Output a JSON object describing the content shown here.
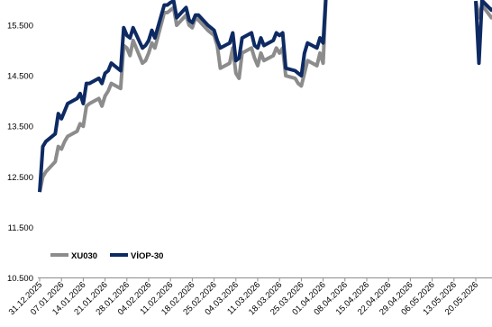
{
  "chart_data": {
    "type": "line",
    "title": "",
    "xlabel": "",
    "ylabel": "",
    "ylim": [
      10500,
      16000
    ],
    "y_ticks": [
      "10.500",
      "11.500",
      "12.500",
      "13.500",
      "14.500",
      "15.500"
    ],
    "y_tick_values": [
      10500,
      11500,
      12500,
      13500,
      14500,
      15500
    ],
    "x_ticks": [
      "31.12.2025",
      "07.01.2026",
      "14.01.2026",
      "21.01.2026",
      "28.01.2026",
      "04.02.2026",
      "11.02.2026",
      "18.02.2026",
      "25.02.2026",
      "04.03.2026",
      "11.03.2026",
      "18.03.2026",
      "25.03.2026",
      "01.04.2026",
      "08.04.2026",
      "15.04.2026",
      "22.04.2026",
      "29.04.2026",
      "06.05.2026",
      "13.05.2026",
      "20.05.2026"
    ],
    "grid": false,
    "legend_position": "bottom-left",
    "series": [
      {
        "name": "XU030",
        "color": "#8c8c8c",
        "points": [
          [
            "31.12.2025",
            12200
          ],
          [
            "01.01.2026",
            12500
          ],
          [
            "02.01.2026",
            12600
          ],
          [
            "05.01.2026",
            12800
          ],
          [
            "06.01.2026",
            13100
          ],
          [
            "07.01.2026",
            13050
          ],
          [
            "08.01.2026",
            13200
          ],
          [
            "09.01.2026",
            13300
          ],
          [
            "12.01.2026",
            13400
          ],
          [
            "13.01.2026",
            13550
          ],
          [
            "14.01.2026",
            13500
          ],
          [
            "15.01.2026",
            13900
          ],
          [
            "16.01.2026",
            13950
          ],
          [
            "19.01.2026",
            14050
          ],
          [
            "20.01.2026",
            13900
          ],
          [
            "21.01.2026",
            14100
          ],
          [
            "22.01.2026",
            14200
          ],
          [
            "23.01.2026",
            14350
          ],
          [
            "26.01.2026",
            14250
          ],
          [
            "27.01.2026",
            15100
          ],
          [
            "28.01.2026",
            15050
          ],
          [
            "29.01.2026",
            14900
          ],
          [
            "30.01.2026",
            15200
          ],
          [
            "02.02.2026",
            14750
          ],
          [
            "03.02.2026",
            14800
          ],
          [
            "04.02.2026",
            14950
          ],
          [
            "05.02.2026",
            15150
          ],
          [
            "06.02.2026",
            15050
          ],
          [
            "09.02.2026",
            15750
          ],
          [
            "10.02.2026",
            15750
          ],
          [
            "11.02.2026",
            15800
          ],
          [
            "12.02.2026",
            15850
          ],
          [
            "13.02.2026",
            15500
          ],
          [
            "16.02.2026",
            15700
          ],
          [
            "17.02.2026",
            15500
          ],
          [
            "18.02.2026",
            15450
          ],
          [
            "19.02.2026",
            15650
          ],
          [
            "20.02.2026",
            15600
          ],
          [
            "23.02.2026",
            15400
          ],
          [
            "24.02.2026",
            15350
          ],
          [
            "25.02.2026",
            15300
          ],
          [
            "26.02.2026",
            15100
          ],
          [
            "27.02.2026",
            14650
          ],
          [
            "02.03.2026",
            14750
          ],
          [
            "03.03.2026",
            15050
          ],
          [
            "04.03.2026",
            14550
          ],
          [
            "05.03.2026",
            14450
          ],
          [
            "06.03.2026",
            14950
          ],
          [
            "09.03.2026",
            15050
          ],
          [
            "10.03.2026",
            14850
          ],
          [
            "11.03.2026",
            14700
          ],
          [
            "12.03.2026",
            14950
          ],
          [
            "13.03.2026",
            14800
          ],
          [
            "16.03.2026",
            14900
          ],
          [
            "17.03.2026",
            15050
          ],
          [
            "18.03.2026",
            14950
          ],
          [
            "19.03.2026",
            15050
          ],
          [
            "20.03.2026",
            14500
          ],
          [
            "23.03.2026",
            14450
          ],
          [
            "24.03.2026",
            14350
          ],
          [
            "25.03.2026",
            14300
          ],
          [
            "26.03.2026",
            14550
          ],
          [
            "27.03.2026",
            14800
          ],
          [
            "30.03.2026",
            14700
          ],
          [
            "31.03.2026",
            14950
          ],
          [
            "01.04.2026",
            14750
          ],
          [
            "02.04.2026",
            16200
          ]
        ]
      },
      {
        "name": "VİOP-30",
        "color": "#0e2a63",
        "points": [
          [
            "31.12.2025",
            12200
          ],
          [
            "01.01.2026",
            13100
          ],
          [
            "02.01.2026",
            13200
          ],
          [
            "05.01.2026",
            13350
          ],
          [
            "06.01.2026",
            13750
          ],
          [
            "07.01.2026",
            13650
          ],
          [
            "08.01.2026",
            13800
          ],
          [
            "09.01.2026",
            13950
          ],
          [
            "12.01.2026",
            14050
          ],
          [
            "13.01.2026",
            14150
          ],
          [
            "14.01.2026",
            13950
          ],
          [
            "15.01.2026",
            14350
          ],
          [
            "16.01.2026",
            14350
          ],
          [
            "19.01.2026",
            14450
          ],
          [
            "20.01.2026",
            14350
          ],
          [
            "21.01.2026",
            14550
          ],
          [
            "22.01.2026",
            14600
          ],
          [
            "23.01.2026",
            14750
          ],
          [
            "26.01.2026",
            14600
          ],
          [
            "27.01.2026",
            15450
          ],
          [
            "28.01.2026",
            15300
          ],
          [
            "29.01.2026",
            15250
          ],
          [
            "30.01.2026",
            15450
          ],
          [
            "02.02.2026",
            15050
          ],
          [
            "03.02.2026",
            15100
          ],
          [
            "04.02.2026",
            15200
          ],
          [
            "05.02.2026",
            15400
          ],
          [
            "06.02.2026",
            15250
          ],
          [
            "09.02.2026",
            15900
          ],
          [
            "10.02.2026",
            15900
          ],
          [
            "11.02.2026",
            15950
          ],
          [
            "12.02.2026",
            15980
          ],
          [
            "13.02.2026",
            15650
          ],
          [
            "16.02.2026",
            15850
          ],
          [
            "17.02.2026",
            15600
          ],
          [
            "18.02.2026",
            15550
          ],
          [
            "19.02.2026",
            15700
          ],
          [
            "20.02.2026",
            15700
          ],
          [
            "23.02.2026",
            15500
          ],
          [
            "24.02.2026",
            15450
          ],
          [
            "25.02.2026",
            15400
          ],
          [
            "26.02.2026",
            15200
          ],
          [
            "27.02.2026",
            15050
          ],
          [
            "02.03.2026",
            15150
          ],
          [
            "03.03.2026",
            15350
          ],
          [
            "04.03.2026",
            14800
          ],
          [
            "05.03.2026",
            14850
          ],
          [
            "06.03.2026",
            15250
          ],
          [
            "09.03.2026",
            15350
          ],
          [
            "10.03.2026",
            15100
          ],
          [
            "11.03.2026",
            15050
          ],
          [
            "12.03.2026",
            15250
          ],
          [
            "13.03.2026",
            15100
          ],
          [
            "16.03.2026",
            15200
          ],
          [
            "17.03.2026",
            15350
          ],
          [
            "18.03.2026",
            15300
          ],
          [
            "19.03.2026",
            15350
          ],
          [
            "20.03.2026",
            14650
          ],
          [
            "23.03.2026",
            14600
          ],
          [
            "24.03.2026",
            14550
          ],
          [
            "25.03.2026",
            14500
          ],
          [
            "26.03.2026",
            14950
          ],
          [
            "27.03.2026",
            15150
          ],
          [
            "30.03.2026",
            15050
          ],
          [
            "31.03.2026",
            15250
          ],
          [
            "01.04.2026",
            15150
          ],
          [
            "02.04.2026",
            16200
          ]
        ]
      }
    ],
    "far_right_segments": [
      {
        "name": "XU030",
        "color": "#8c8c8c",
        "points": [
          [
            "20.05.2026",
            15980
          ],
          [
            "21.05.2026",
            15650
          ],
          [
            "22.05.2026",
            15900
          ],
          [
            "25.05.2026",
            15650
          ],
          [
            "26.05.2026",
            15700
          ],
          [
            "27.05.2026",
            15500
          ]
        ]
      },
      {
        "name": "VİOP-30",
        "color": "#0e2a63",
        "points": [
          [
            "20.05.2026",
            15980
          ],
          [
            "21.05.2026",
            14750
          ],
          [
            "22.05.2026",
            15990
          ],
          [
            "25.05.2026",
            15800
          ],
          [
            "26.05.2026",
            15850
          ],
          [
            "27.05.2026",
            15950
          ]
        ]
      }
    ]
  }
}
